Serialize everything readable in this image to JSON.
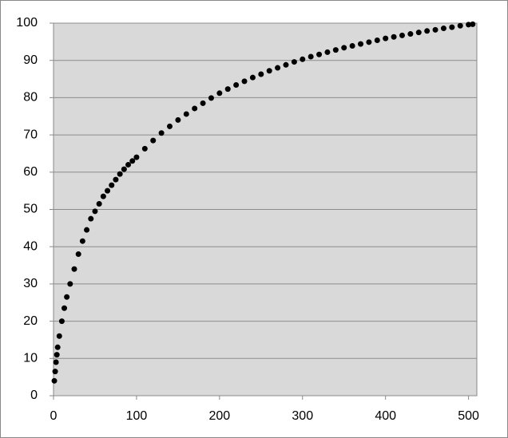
{
  "chart_data": {
    "type": "scatter",
    "x": [
      1,
      2,
      3,
      4,
      5,
      7,
      10,
      13,
      16,
      20,
      25,
      30,
      35,
      40,
      45,
      50,
      55,
      60,
      65,
      70,
      75,
      80,
      85,
      90,
      95,
      100,
      110,
      120,
      130,
      140,
      150,
      160,
      170,
      180,
      190,
      200,
      210,
      220,
      230,
      240,
      250,
      260,
      270,
      280,
      290,
      300,
      310,
      320,
      330,
      340,
      350,
      360,
      370,
      380,
      390,
      400,
      410,
      420,
      430,
      440,
      450,
      460,
      470,
      480,
      490,
      500,
      505
    ],
    "values": [
      4,
      6.5,
      9,
      11,
      13,
      16,
      20,
      23.5,
      26.5,
      30,
      34,
      38,
      41.5,
      44.5,
      47.5,
      49.5,
      51.5,
      53.5,
      55,
      56.5,
      58,
      59.5,
      60.8,
      62,
      63,
      64,
      66.3,
      68.5,
      70.5,
      72.3,
      74,
      75.6,
      77.1,
      78.5,
      79.9,
      81.2,
      82.3,
      83.4,
      84.4,
      85.4,
      86.3,
      87.2,
      88,
      88.8,
      89.6,
      90.3,
      91,
      91.6,
      92.2,
      92.8,
      93.4,
      93.9,
      94.4,
      94.9,
      95.4,
      95.9,
      96.3,
      96.7,
      97.1,
      97.5,
      97.9,
      98.2,
      98.6,
      98.9,
      99.3,
      99.6,
      99.7
    ],
    "color": "#000000",
    "xlim": [
      0,
      510
    ],
    "ylim": [
      0,
      100
    ],
    "xticks": [
      0,
      100,
      200,
      300,
      400,
      500
    ],
    "yticks": [
      0,
      10,
      20,
      30,
      40,
      50,
      60,
      70,
      80,
      90,
      100
    ],
    "grid": true
  }
}
